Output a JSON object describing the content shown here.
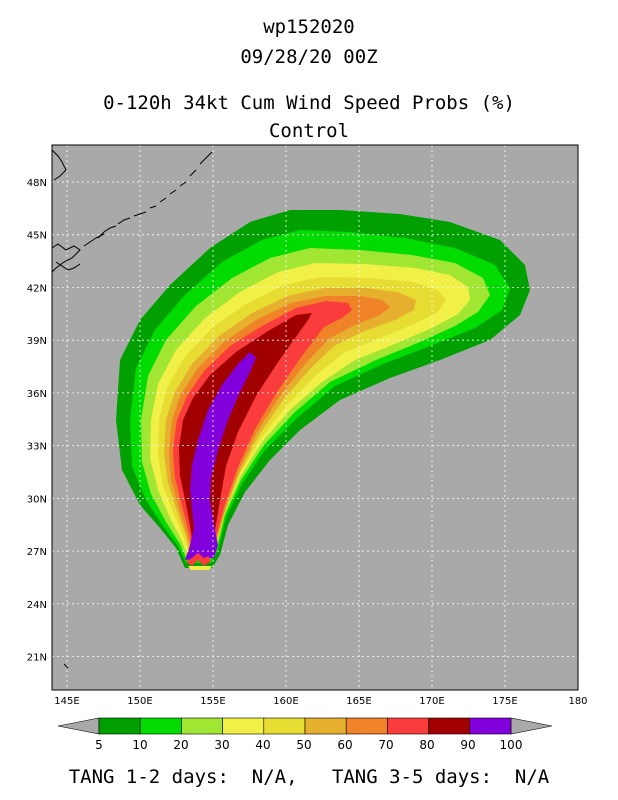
{
  "title": {
    "storm_id": "wp152020",
    "datetime": "09/28/20 00Z",
    "product": "0-120h 34kt Cum Wind Speed Probs (%)",
    "run": "Control"
  },
  "map": {
    "lon_range": [
      144,
      180
    ],
    "lat_range": [
      19,
      50
    ],
    "lat_ticks": [
      "48N",
      "45N",
      "42N",
      "39N",
      "36N",
      "33N",
      "30N",
      "27N",
      "24N",
      "21N"
    ],
    "lon_ticks": [
      "145E",
      "150E",
      "155E",
      "160E",
      "165E",
      "170E",
      "175E",
      "180"
    ],
    "grid": true,
    "background_color": "#a9a9a9"
  },
  "colorbar": {
    "labels": [
      "5",
      "10",
      "20",
      "30",
      "40",
      "50",
      "60",
      "70",
      "80",
      "90",
      "100"
    ],
    "colors": [
      "#00a000",
      "#00dc00",
      "#a0e632",
      "#f0f046",
      "#e6dc32",
      "#e6af2d",
      "#f08228",
      "#fa3c3c",
      "#a00000",
      "#8200dc"
    ]
  },
  "footer": {
    "tang_12_label": "TANG 1-2 days:",
    "tang_12_value": "N/A,",
    "tang_35_label": "TANG 3-5 days:",
    "tang_35_value": "N/A"
  }
}
